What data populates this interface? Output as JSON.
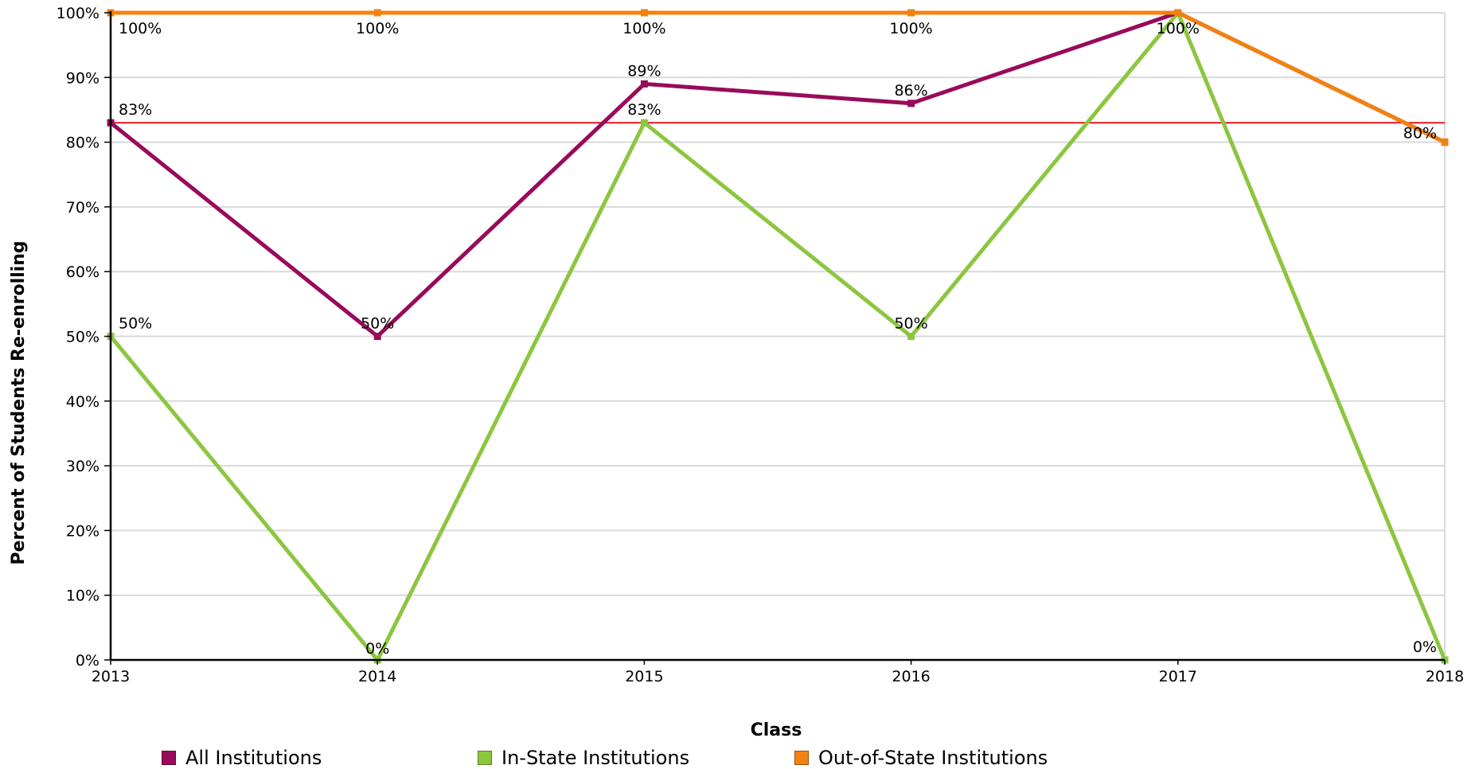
{
  "chart_data": {
    "type": "line",
    "xlabel": "Class",
    "ylabel": "Percent of Students Re-enrolling",
    "categories": [
      "2013",
      "2014",
      "2015",
      "2016",
      "2017",
      "2018"
    ],
    "ylim": [
      0,
      100
    ],
    "y_ticks": [
      "0%",
      "10%",
      "20%",
      "30%",
      "40%",
      "50%",
      "60%",
      "70%",
      "80%",
      "90%",
      "100%"
    ],
    "grid": true,
    "legend_position": "bottom",
    "reference_line": {
      "value": 83,
      "color": "#e8141c"
    },
    "series": [
      {
        "name": "All Institutions",
        "color": "#990a5a",
        "values": [
          83,
          50,
          89,
          86,
          100,
          80
        ],
        "labels": [
          "83%",
          "50%",
          "89%",
          "86%",
          "",
          ""
        ]
      },
      {
        "name": "In-State Institutions",
        "color": "#8cc63f",
        "values": [
          50,
          0,
          83,
          50,
          100,
          0
        ],
        "labels": [
          "50%",
          "0%",
          "83%",
          "50%",
          "",
          "0%"
        ]
      },
      {
        "name": "Out-of-State Institutions",
        "color": "#f2820f",
        "values": [
          100,
          100,
          100,
          100,
          100,
          80
        ],
        "labels": [
          "100%",
          "100%",
          "100%",
          "100%",
          "100%",
          "80%"
        ]
      }
    ]
  }
}
